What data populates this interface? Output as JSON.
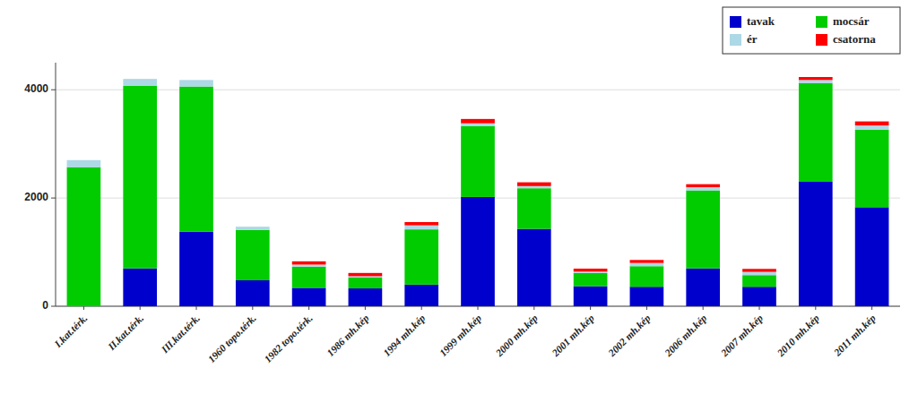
{
  "chart_data": {
    "type": "bar",
    "stacked": true,
    "categories": [
      "I.kat.térk.",
      "II.kat.térk.",
      "III.kat.térk.",
      "1960 topo.térk.",
      "1982 topo.térk.",
      "1986 mh.kép",
      "1994 mh.kép",
      "1999 mh.kép",
      "2000 mh.kép",
      "2001 mh.kép",
      "2002 mh.kép",
      "2006 mh.kép",
      "2007 mh.kép",
      "2010 mh.kép",
      "2011 mh.kép"
    ],
    "series": [
      {
        "name": "tavak",
        "color": "#0000CD",
        "values": [
          0,
          700,
          1380,
          480,
          340,
          330,
          400,
          2020,
          1430,
          370,
          360,
          700,
          360,
          2300,
          1830
        ]
      },
      {
        "name": "mocsár",
        "color": "#00CC00",
        "values": [
          2570,
          3370,
          2680,
          930,
          390,
          200,
          1020,
          1310,
          750,
          245,
          380,
          1440,
          215,
          1820,
          1430
        ]
      },
      {
        "name": "ér",
        "color": "#ADD8E6",
        "values": [
          130,
          130,
          120,
          60,
          40,
          25,
          75,
          50,
          40,
          25,
          60,
          60,
          60,
          60,
          80
        ]
      },
      {
        "name": "csatorna",
        "color": "#FF0000",
        "values": [
          0,
          0,
          0,
          0,
          60,
          60,
          60,
          80,
          70,
          55,
          55,
          55,
          55,
          55,
          75
        ]
      }
    ],
    "ylim": [
      0,
      4500
    ],
    "yticks": [
      0,
      2000,
      4000
    ],
    "grid": true,
    "legend": "upper right"
  }
}
